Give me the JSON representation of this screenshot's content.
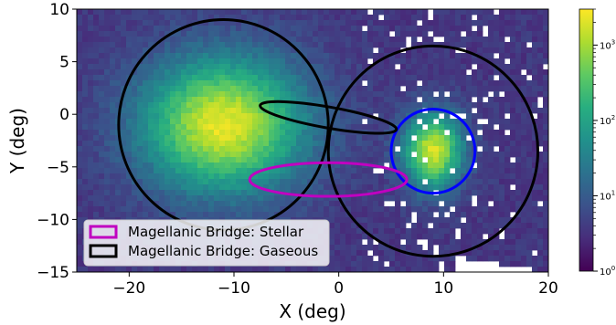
{
  "chart_data": {
    "type": "heatmap",
    "title": "",
    "xlabel": "X (deg)",
    "ylabel": "Y (deg)",
    "xlim": [
      -25,
      20
    ],
    "ylim": [
      -15,
      10
    ],
    "x_ticks": [
      {
        "value": -20,
        "label": "−20"
      },
      {
        "value": -10,
        "label": "−10"
      },
      {
        "value": 0,
        "label": "0"
      },
      {
        "value": 10,
        "label": "10"
      },
      {
        "value": 20,
        "label": "20"
      }
    ],
    "y_ticks": [
      {
        "value": -15,
        "label": "−15"
      },
      {
        "value": -10,
        "label": "−10"
      },
      {
        "value": -5,
        "label": "−5"
      },
      {
        "value": 0,
        "label": "0"
      },
      {
        "value": 5,
        "label": "5"
      },
      {
        "value": 10,
        "label": "10"
      }
    ],
    "colorbar": {
      "scale": "log",
      "range": [
        1,
        3000
      ],
      "colormap": "viridis",
      "ticks": [
        {
          "value": 1,
          "base": "10",
          "exp": "0"
        },
        {
          "value": 10,
          "base": "10",
          "exp": "1"
        },
        {
          "value": 100,
          "base": "10",
          "exp": "2"
        },
        {
          "value": 1000,
          "base": "10",
          "exp": "3"
        }
      ]
    },
    "density_peaks": [
      {
        "x": -11,
        "y": -1,
        "peak_log10": 3.4,
        "sigma_x": 5.5,
        "sigma_y": 4.5
      },
      {
        "x": 9,
        "y": -3.5,
        "peak_log10": 3.3,
        "sigma_x": 2.0,
        "sigma_y": 2.5
      }
    ],
    "shapes": [
      {
        "kind": "circle",
        "cx": -11,
        "cy": -1,
        "r": 10,
        "color": "#000000",
        "label": ""
      },
      {
        "kind": "circle",
        "cx": 9,
        "cy": -3.5,
        "r": 10,
        "color": "#000000",
        "label": ""
      },
      {
        "kind": "circle",
        "cx": 9,
        "cy": -3.5,
        "r": 4,
        "color": "#0000ff",
        "label": ""
      },
      {
        "kind": "ellipse",
        "cx": -1,
        "cy": -0.3,
        "rx": 6.6,
        "ry": 1.0,
        "angle": -10,
        "color": "#000000",
        "label": "Magellanic Bridge: Gaseous"
      },
      {
        "kind": "ellipse",
        "cx": -1,
        "cy": -6.2,
        "rx": 7.5,
        "ry": 1.6,
        "angle": 0,
        "color": "#c000c0",
        "label": "Magellanic Bridge: Stellar"
      }
    ],
    "legend": {
      "placement": "lower-left",
      "entries": [
        {
          "label": "Magellanic Bridge: Stellar",
          "color": "#c000c0"
        },
        {
          "label": "Magellanic Bridge: Gaseous",
          "color": "#000000"
        }
      ]
    },
    "grid": false
  }
}
